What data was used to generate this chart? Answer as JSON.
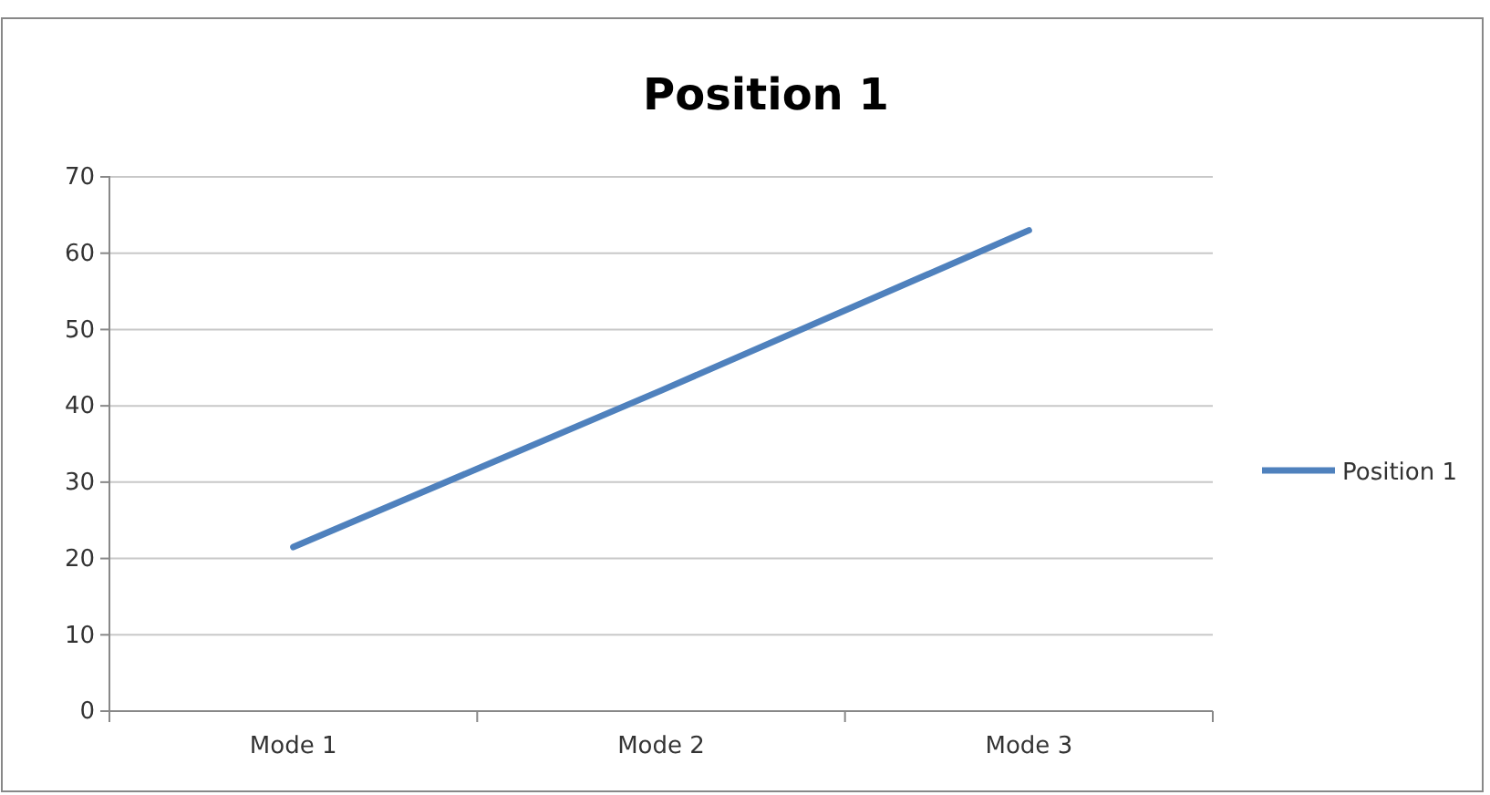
{
  "chart_data": {
    "type": "line",
    "title": "Position 1",
    "categories": [
      "Mode 1",
      "Mode 2",
      "Mode 3"
    ],
    "series": [
      {
        "name": "Position 1",
        "color": "#4f81bd",
        "values": [
          21.5,
          42,
          63
        ]
      }
    ],
    "ylim": [
      0,
      70
    ],
    "yticks": [
      0,
      10,
      20,
      30,
      40,
      50,
      60,
      70
    ],
    "grid": "y",
    "legend": "right",
    "marker": "none",
    "line_style": "solid"
  }
}
